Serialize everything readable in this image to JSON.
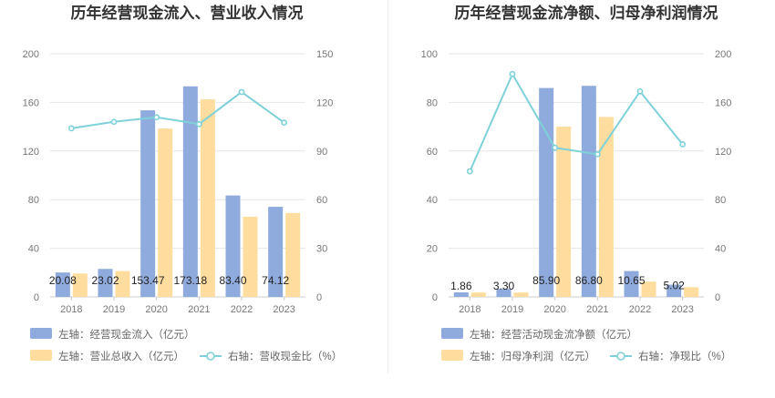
{
  "chart_data": [
    {
      "type": "bar",
      "title": "历年经营现金流入、营业收入情况",
      "categories": [
        "2018",
        "2019",
        "2020",
        "2021",
        "2022",
        "2023"
      ],
      "series": [
        {
          "name": "左轴：经营现金流入（亿元）",
          "kind": "bar",
          "axis": "left",
          "color": "#8faadc",
          "values": [
            20.08,
            23.02,
            153.47,
            173.18,
            83.4,
            74.12
          ],
          "labels": [
            "20.08",
            "23.02",
            "153.47",
            "173.18",
            "83.40",
            "74.12"
          ]
        },
        {
          "name": "左轴：营业总收入（亿元）",
          "kind": "bar",
          "axis": "left",
          "color": "#ffdd9e",
          "values": [
            19.3,
            21.3,
            138.5,
            162.5,
            66.0,
            69.0
          ]
        },
        {
          "name": "右轴：营收现金比（%）",
          "kind": "line",
          "axis": "right",
          "color": "#7fd1d9",
          "values": [
            104.0,
            108.0,
            110.8,
            106.6,
            126.4,
            107.5
          ]
        }
      ],
      "left_axis": {
        "min": 0,
        "max": 200,
        "ticks": [
          "0",
          "40",
          "80",
          "120",
          "160",
          "200"
        ]
      },
      "right_axis": {
        "min": 0,
        "max": 150,
        "ticks": [
          "0",
          "30",
          "60",
          "90",
          "120",
          "150"
        ]
      }
    },
    {
      "type": "bar",
      "title": "历年经营现金流净额、归母净利润情况",
      "categories": [
        "2018",
        "2019",
        "2020",
        "2021",
        "2022",
        "2023"
      ],
      "series": [
        {
          "name": "左轴：经营活动现金流净额（亿元）",
          "kind": "bar",
          "axis": "left",
          "color": "#8faadc",
          "values": [
            1.86,
            3.3,
            85.9,
            86.8,
            10.65,
            5.02
          ],
          "labels": [
            "1.86",
            "3.30",
            "85.90",
            "86.80",
            "10.65",
            "5.02"
          ]
        },
        {
          "name": "左轴：归母净利润（亿元）",
          "kind": "bar",
          "axis": "left",
          "color": "#ffdd9e",
          "values": [
            1.8,
            1.8,
            70.0,
            74.0,
            6.3,
            4.0
          ]
        },
        {
          "name": "右轴：净现比（%）",
          "kind": "line",
          "axis": "right",
          "color": "#7fd1d9",
          "values": [
            103.3,
            183.3,
            122.7,
            117.3,
            169.0,
            125.5
          ]
        }
      ],
      "left_axis": {
        "min": 0,
        "max": 100,
        "ticks": [
          "0",
          "20",
          "40",
          "60",
          "80",
          "100"
        ]
      },
      "right_axis": {
        "min": 0,
        "max": 200,
        "ticks": [
          "0",
          "40",
          "80",
          "120",
          "160",
          "200"
        ]
      }
    }
  ]
}
